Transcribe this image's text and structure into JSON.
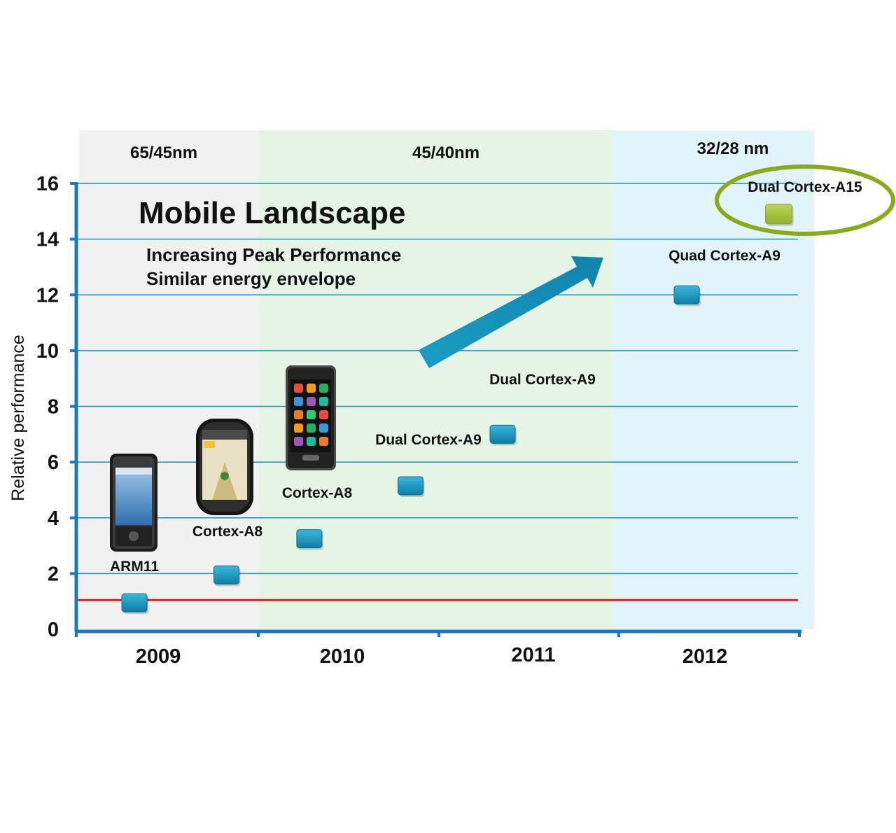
{
  "chart_data": {
    "type": "scatter",
    "title": "Mobile Landscape",
    "subtitle_lines": [
      "Increasing  Peak Performance",
      "Similar energy envelope"
    ],
    "ylabel": "Relative performance",
    "xlabel": "",
    "ylim": [
      0,
      16
    ],
    "y_ticks": [
      "0",
      "2",
      "4",
      "6",
      "8",
      "10",
      "12",
      "14",
      "16"
    ],
    "x_ticks": [
      "2009",
      "2010",
      "2011",
      "2012"
    ],
    "process_bands": [
      {
        "label": "65/45nm",
        "color": "#f1f1f1"
      },
      {
        "label": "45/40nm",
        "color": "#e6f4e6"
      },
      {
        "label": "32/28 nm",
        "color": "#e3f3fa"
      }
    ],
    "reference_line": {
      "y": 1,
      "color": "#e0201a"
    },
    "grid": true,
    "points": [
      {
        "label": "ARM11",
        "x": 2009.0,
        "y": 0.95,
        "color": "#1593be"
      },
      {
        "label": "Cortex-A8",
        "x": 2009.5,
        "y": 1.95,
        "color": "#1593be"
      },
      {
        "label": "Cortex-A8",
        "x": 2009.95,
        "y": 3.25,
        "color": "#1593be"
      },
      {
        "label": "Dual Cortex-A9",
        "x": 2010.5,
        "y": 5.15,
        "color": "#1593be"
      },
      {
        "label": "Dual Cortex-A9",
        "x": 2011.0,
        "y": 7.0,
        "color": "#1593be"
      },
      {
        "label": "Quad Cortex-A9",
        "x": 2012.0,
        "y": 12.0,
        "color": "#1593be"
      },
      {
        "label": "Dual Cortex-A15",
        "x": 2012.5,
        "y": 14.9,
        "color": "#a6c13c"
      }
    ],
    "highlight_color": "#8aaa1c",
    "arrow_color": "#1a8fb5",
    "axis_color": "#1a78c2"
  },
  "images": [
    {
      "name": "android-phone-image"
    },
    {
      "name": "palm-pre-phone-image"
    },
    {
      "name": "samsung-wave-phone-image"
    }
  ]
}
